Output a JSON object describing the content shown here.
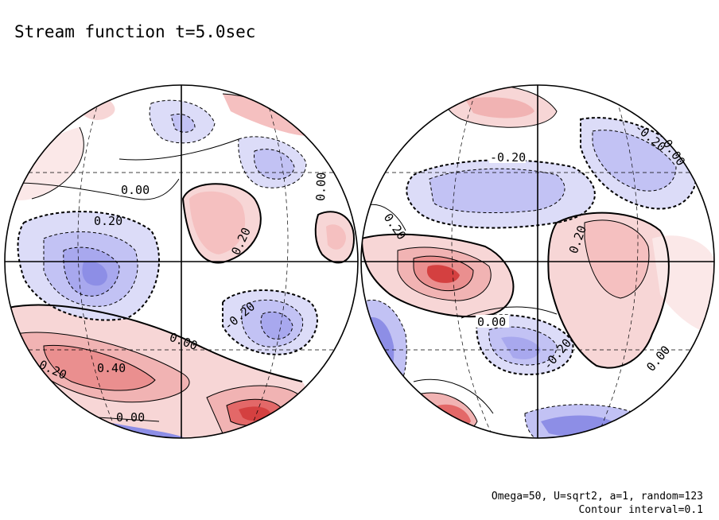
{
  "title": "Stream function t=5.0sec",
  "notes": [
    "Omega=50, U=sqrt2, a=1, random=123",
    "Contour interval=0.1"
  ],
  "colors": {
    "positive": "#e05a5a",
    "negative": "#5a64e0",
    "line": "#000000",
    "background": "#ffffff"
  },
  "left_globe": {
    "contour_labels": [
      "0.00",
      "0.20",
      "0.20",
      "0.00",
      "-0.20",
      "0.00",
      "0.40",
      "0.20",
      "0.00"
    ]
  },
  "right_globe": {
    "contour_labels": [
      "-0.20",
      "-0.20",
      "0.00",
      "0.20",
      "0.20",
      "0.00",
      "-0.20",
      "0.00"
    ]
  }
}
